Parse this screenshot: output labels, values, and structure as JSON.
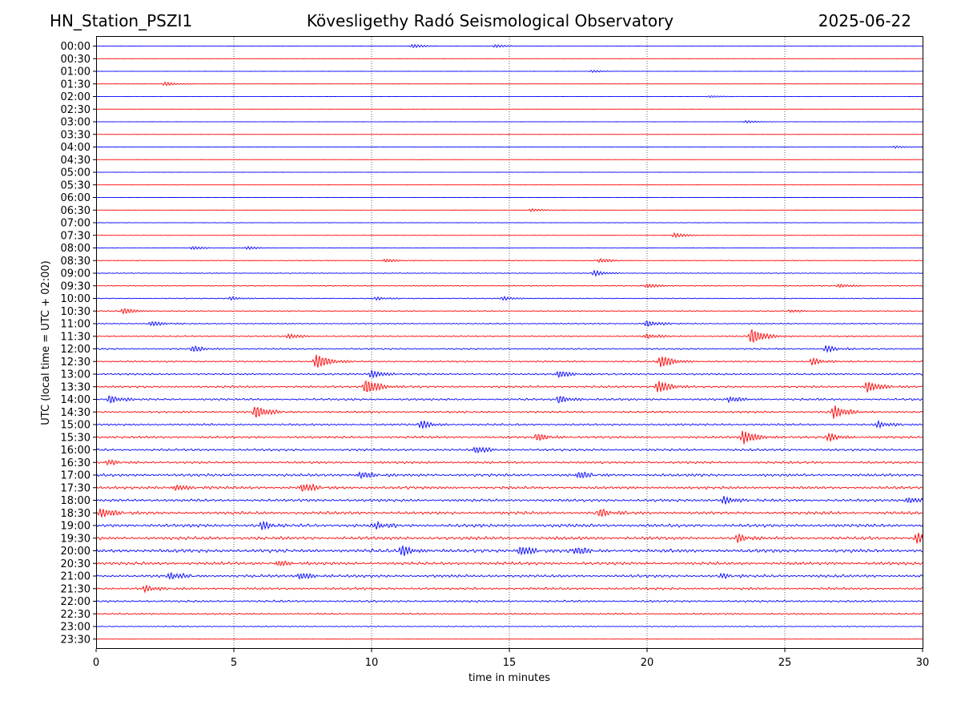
{
  "header": {
    "station": "HN_Station_PSZI1",
    "title": "Kövesligethy Radó Seismological Observatory",
    "date": "2025-06-22"
  },
  "chart_data": {
    "type": "line",
    "title": "Kövesligethy Radó Seismological Observatory",
    "xlabel": "time in minutes",
    "ylabel": "UTC (local time = UTC + 02:00)",
    "xlim": [
      0,
      30
    ],
    "xticks": [
      "0",
      "5",
      "10",
      "15",
      "20",
      "25",
      "30"
    ],
    "grid": "vertical dotted lines at 5-minute ticks",
    "row_labels": [
      "00:00",
      "00:30",
      "01:00",
      "01:30",
      "02:00",
      "02:30",
      "03:00",
      "03:30",
      "04:00",
      "04:30",
      "05:00",
      "05:30",
      "06:00",
      "06:30",
      "07:00",
      "07:30",
      "08:00",
      "08:30",
      "09:00",
      "09:30",
      "10:00",
      "10:30",
      "11:00",
      "11:30",
      "12:00",
      "12:30",
      "13:00",
      "13:30",
      "14:00",
      "14:30",
      "15:00",
      "15:30",
      "16:00",
      "16:30",
      "17:00",
      "17:30",
      "18:00",
      "18:30",
      "19:00",
      "19:30",
      "20:00",
      "20:30",
      "21:00",
      "21:30",
      "22:00",
      "22:30",
      "23:00",
      "23:30"
    ],
    "trace_colors": [
      "#0000ff",
      "#ff0000"
    ],
    "noise_levels": [
      0.05,
      0.05,
      0.05,
      0.05,
      0.05,
      0.05,
      0.05,
      0.05,
      0.05,
      0.05,
      0.05,
      0.05,
      0.02,
      0.06,
      0.08,
      0.08,
      0.1,
      0.15,
      0.15,
      0.18,
      0.2,
      0.22,
      0.25,
      0.3,
      0.35,
      0.35,
      0.4,
      0.45,
      0.45,
      0.45,
      0.45,
      0.5,
      0.5,
      0.5,
      0.6,
      0.6,
      0.6,
      0.65,
      0.7,
      0.7,
      0.75,
      0.65,
      0.6,
      0.5,
      0.45,
      0.35,
      0.2,
      0.08
    ],
    "events": [
      {
        "row": 0,
        "t": 11.5,
        "amp": 1.5
      },
      {
        "row": 0,
        "t": 14.5,
        "amp": 1.3
      },
      {
        "row": 2,
        "t": 18.0,
        "amp": 0.9
      },
      {
        "row": 3,
        "t": 2.5,
        "amp": 1.5
      },
      {
        "row": 4,
        "t": 22.3,
        "amp": 0.8
      },
      {
        "row": 6,
        "t": 23.6,
        "amp": 1.0
      },
      {
        "row": 8,
        "t": 29.0,
        "amp": 0.9
      },
      {
        "row": 13,
        "t": 15.8,
        "amp": 1.2
      },
      {
        "row": 15,
        "t": 21.0,
        "amp": 1.8
      },
      {
        "row": 16,
        "t": 3.5,
        "amp": 1.5
      },
      {
        "row": 16,
        "t": 5.5,
        "amp": 1.2
      },
      {
        "row": 17,
        "t": 10.5,
        "amp": 1.5
      },
      {
        "row": 17,
        "t": 18.3,
        "amp": 1.8
      },
      {
        "row": 18,
        "t": 18.1,
        "amp": 2.0
      },
      {
        "row": 19,
        "t": 20.0,
        "amp": 1.8
      },
      {
        "row": 19,
        "t": 27.0,
        "amp": 1.5
      },
      {
        "row": 20,
        "t": 4.9,
        "amp": 1.3
      },
      {
        "row": 20,
        "t": 10.2,
        "amp": 1.2
      },
      {
        "row": 20,
        "t": 14.8,
        "amp": 1.5
      },
      {
        "row": 21,
        "t": 1.0,
        "amp": 2.5
      },
      {
        "row": 21,
        "t": 25.2,
        "amp": 1.2
      },
      {
        "row": 22,
        "t": 2.0,
        "amp": 2.0
      },
      {
        "row": 22,
        "t": 20.0,
        "amp": 2.5
      },
      {
        "row": 23,
        "t": 7.0,
        "amp": 2.0
      },
      {
        "row": 23,
        "t": 20.0,
        "amp": 2.0
      },
      {
        "row": 23,
        "t": 23.8,
        "amp": 6.0
      },
      {
        "row": 24,
        "t": 3.5,
        "amp": 2.5
      },
      {
        "row": 24,
        "t": 26.5,
        "amp": 2.5
      },
      {
        "row": 25,
        "t": 8.0,
        "amp": 6.0
      },
      {
        "row": 25,
        "t": 20.5,
        "amp": 5.0
      },
      {
        "row": 25,
        "t": 26.0,
        "amp": 2.5
      },
      {
        "row": 26,
        "t": 10.0,
        "amp": 3.0
      },
      {
        "row": 26,
        "t": 16.8,
        "amp": 3.0
      },
      {
        "row": 27,
        "t": 9.8,
        "amp": 6.0
      },
      {
        "row": 27,
        "t": 20.4,
        "amp": 5.0
      },
      {
        "row": 27,
        "t": 28.0,
        "amp": 4.5
      },
      {
        "row": 28,
        "t": 0.5,
        "amp": 3.0
      },
      {
        "row": 28,
        "t": 16.8,
        "amp": 3.0
      },
      {
        "row": 28,
        "t": 23.0,
        "amp": 2.5
      },
      {
        "row": 29,
        "t": 5.8,
        "amp": 5.0
      },
      {
        "row": 29,
        "t": 26.8,
        "amp": 5.0
      },
      {
        "row": 30,
        "t": 11.8,
        "amp": 3.0
      },
      {
        "row": 30,
        "t": 28.4,
        "amp": 2.5
      },
      {
        "row": 31,
        "t": 16.0,
        "amp": 3.0
      },
      {
        "row": 31,
        "t": 23.5,
        "amp": 5.5
      },
      {
        "row": 31,
        "t": 26.6,
        "amp": 3.0
      },
      {
        "row": 32,
        "t": 13.8,
        "amp": 3.0
      },
      {
        "row": 33,
        "t": 0.4,
        "amp": 2.0
      },
      {
        "row": 34,
        "t": 9.6,
        "amp": 3.0
      },
      {
        "row": 34,
        "t": 17.5,
        "amp": 3.0
      },
      {
        "row": 35,
        "t": 7.5,
        "amp": 3.5
      },
      {
        "row": 35,
        "t": 2.9,
        "amp": 2.5
      },
      {
        "row": 36,
        "t": 22.8,
        "amp": 3.0
      },
      {
        "row": 36,
        "t": 29.5,
        "amp": 2.5
      },
      {
        "row": 37,
        "t": 0.2,
        "amp": 4.0
      },
      {
        "row": 37,
        "t": 18.3,
        "amp": 3.0
      },
      {
        "row": 38,
        "t": 6.0,
        "amp": 3.0
      },
      {
        "row": 38,
        "t": 10.2,
        "amp": 2.5
      },
      {
        "row": 39,
        "t": 29.8,
        "amp": 4.0
      },
      {
        "row": 39,
        "t": 23.3,
        "amp": 3.0
      },
      {
        "row": 40,
        "t": 11.1,
        "amp": 4.0
      },
      {
        "row": 40,
        "t": 15.4,
        "amp": 4.0
      },
      {
        "row": 40,
        "t": 17.4,
        "amp": 3.5
      },
      {
        "row": 41,
        "t": 6.6,
        "amp": 2.5
      },
      {
        "row": 42,
        "t": 2.7,
        "amp": 3.0
      },
      {
        "row": 42,
        "t": 7.4,
        "amp": 3.0
      },
      {
        "row": 42,
        "t": 22.7,
        "amp": 1.5
      },
      {
        "row": 43,
        "t": 1.8,
        "amp": 2.5
      }
    ]
  }
}
